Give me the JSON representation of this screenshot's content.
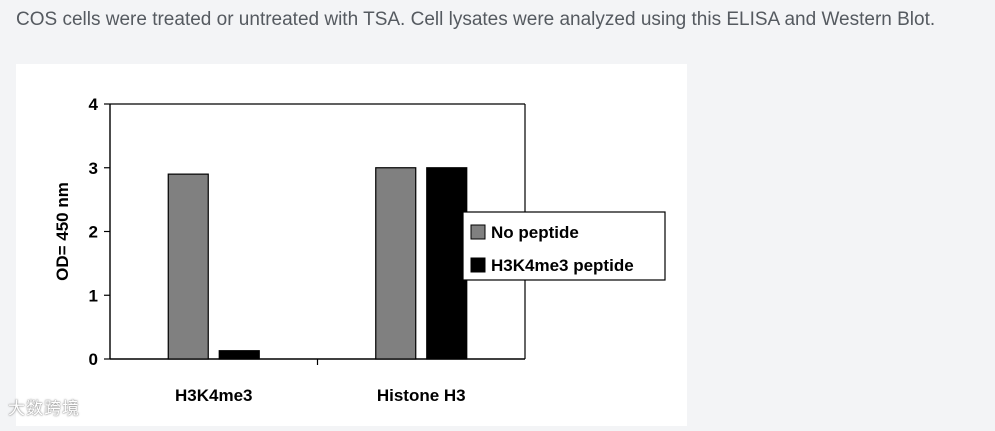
{
  "caption": "COS cells were treated or untreated with TSA. Cell lysates were analyzed using this ELISA and Western Blot.",
  "watermark": "大数跨境",
  "chart_data": {
    "type": "bar",
    "categories": [
      "H3K4me3",
      "Histone H3"
    ],
    "series": [
      {
        "name": "No peptide",
        "values": [
          2.9,
          3.0
        ],
        "color": "#808080"
      },
      {
        "name": "H3K4me3 peptide",
        "values": [
          0.13,
          3.0
        ],
        "color": "#000000"
      }
    ],
    "ylabel": "OD= 450 nm",
    "xlabel": "",
    "ylim": [
      0,
      4
    ],
    "yticks": [
      0,
      1,
      2,
      3,
      4
    ],
    "legend_position": "right",
    "grid": false
  }
}
